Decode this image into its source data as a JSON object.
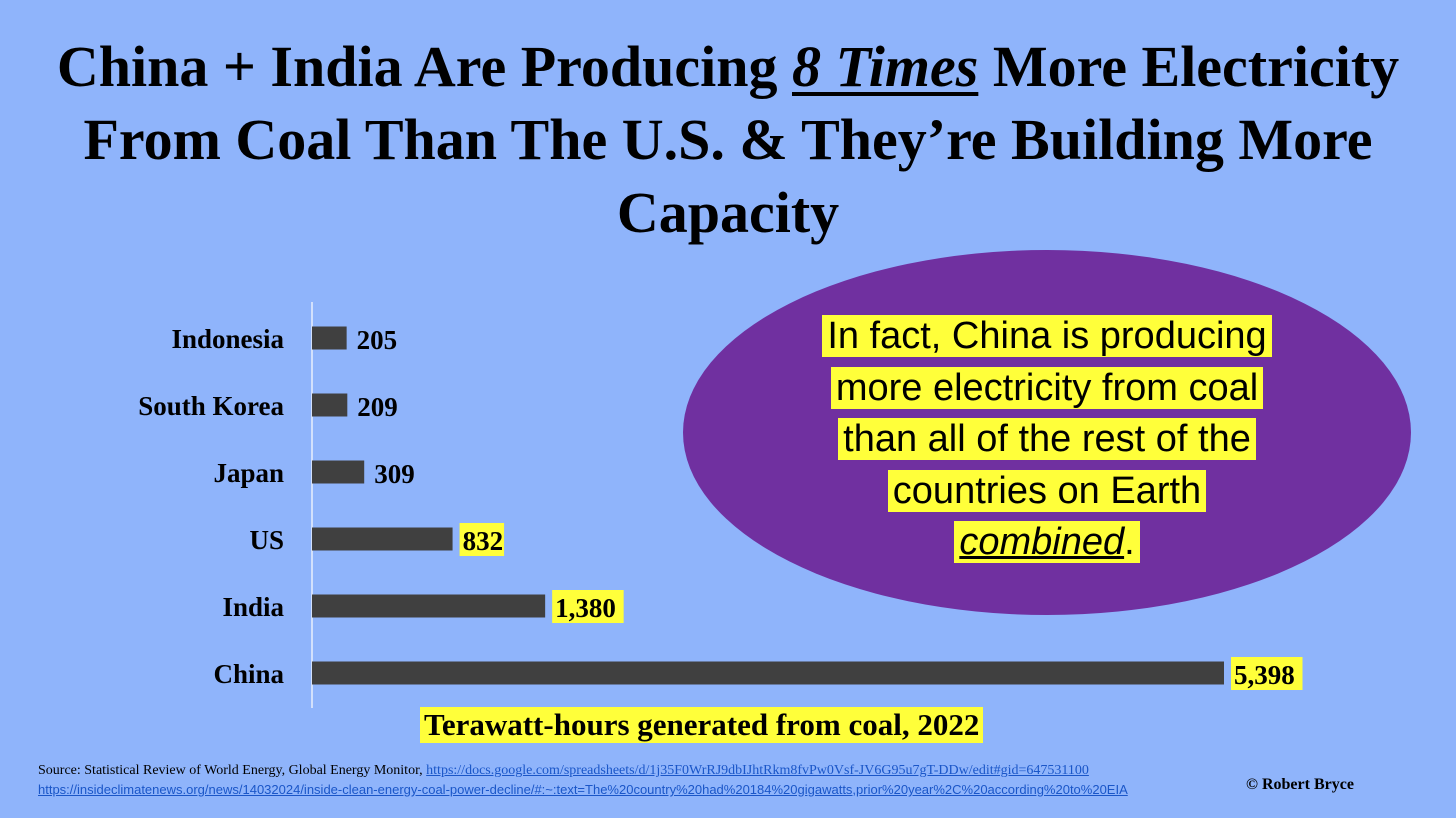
{
  "title": {
    "part1": "China + India Are Producing ",
    "emphasis": "8 Times",
    "part2": " More Electricity From Coal Than The U.S. & They’re Building More Capacity"
  },
  "callout": {
    "line1": "In fact, China is producing",
    "line2": "more electricity from coal",
    "line3": "than all of the rest of the",
    "line4": "countries on Earth",
    "line5_em": "combined",
    "line5_end": "."
  },
  "source": {
    "text": "Source: Statistical Review of World Energy, Global Energy Monitor, ",
    "url1": "https://docs.google.com/spreadsheets/d/1j35F0WrRJ9dbIJhtRkm8fvPw0Vsf-JV6G95u7gT-DDw/edit#gid=647531100",
    "url2": "https://insideclimatenews.org/news/14032024/inside-clean-energy-coal-power-decline/#:~:text=The%20country%20had%20184%20gigawatts,prior%20year%2C%20according%20to%20EIA"
  },
  "copyright": "© Robert Bryce",
  "colors": {
    "background": "#8fb4fb",
    "bar": "#404040",
    "highlight": "#ffff3a",
    "ellipse": "#7030a0"
  },
  "chart_data": {
    "type": "bar",
    "orientation": "horizontal",
    "categories": [
      "Indonesia",
      "South Korea",
      "Japan",
      "US",
      "India",
      "China"
    ],
    "values": [
      205,
      209,
      309,
      832,
      1380,
      5398
    ],
    "value_labels": [
      "205",
      "209",
      "309",
      "832",
      "1,380",
      "5,398"
    ],
    "highlighted": [
      false,
      false,
      false,
      true,
      true,
      true
    ],
    "xlabel": "Terawatt-hours generated from coal, 2022",
    "xlim": [
      0,
      5398
    ],
    "grid": false
  }
}
